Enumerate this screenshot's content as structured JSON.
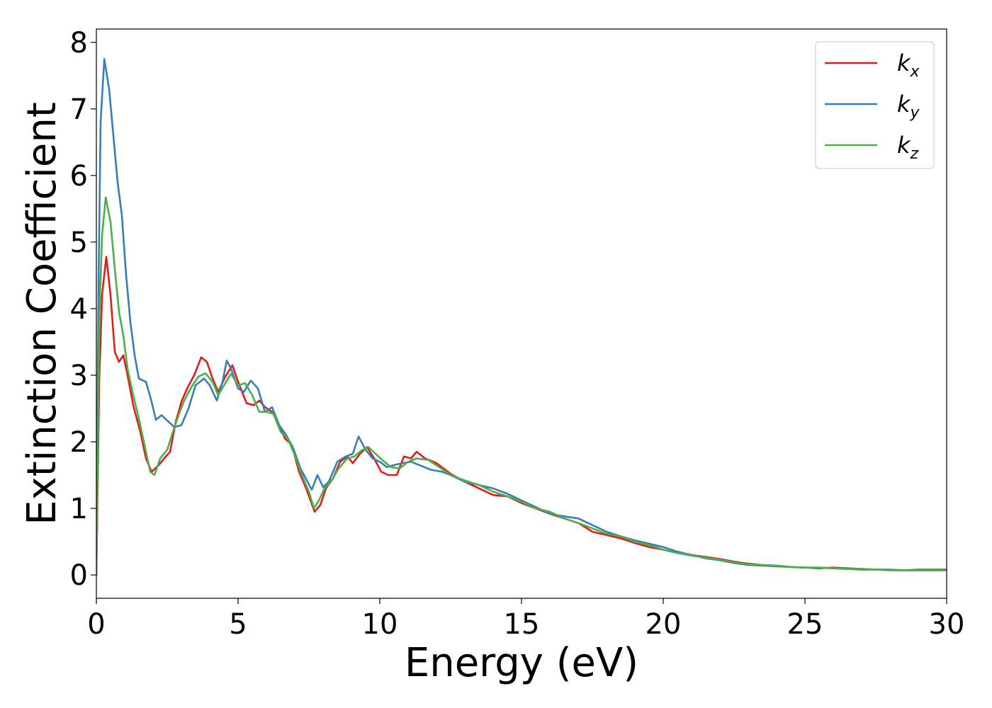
{
  "chart_data": {
    "type": "line",
    "title": "",
    "xlabel": "Energy (eV)",
    "ylabel": "Extinction Coefficient",
    "xlim": [
      0,
      30
    ],
    "ylim": [
      -0.35,
      8.2
    ],
    "xticks": [
      "0",
      "5",
      "10",
      "15",
      "20",
      "25",
      "30"
    ],
    "yticks": [
      "0",
      "1",
      "2",
      "3",
      "4",
      "5",
      "6",
      "7",
      "8"
    ],
    "grid": false,
    "legend_position": "top-right",
    "series": [
      {
        "name": "k",
        "subscript": "x",
        "color": "#e41a1c",
        "points": [
          [
            0,
            0
          ],
          [
            0.1,
            2.9
          ],
          [
            0.2,
            4.2
          ],
          [
            0.35,
            4.78
          ],
          [
            0.5,
            4.2
          ],
          [
            0.65,
            3.35
          ],
          [
            0.8,
            3.2
          ],
          [
            0.95,
            3.3
          ],
          [
            1.1,
            3.0
          ],
          [
            1.3,
            2.55
          ],
          [
            1.55,
            2.15
          ],
          [
            1.75,
            1.75
          ],
          [
            1.95,
            1.55
          ],
          [
            2.2,
            1.65
          ],
          [
            2.45,
            1.78
          ],
          [
            2.6,
            1.85
          ],
          [
            2.8,
            2.3
          ],
          [
            3.0,
            2.6
          ],
          [
            3.2,
            2.8
          ],
          [
            3.45,
            3.0
          ],
          [
            3.7,
            3.27
          ],
          [
            3.9,
            3.2
          ],
          [
            4.1,
            2.95
          ],
          [
            4.3,
            2.75
          ],
          [
            4.55,
            2.98
          ],
          [
            4.8,
            3.15
          ],
          [
            5.0,
            2.9
          ],
          [
            5.3,
            2.58
          ],
          [
            5.55,
            2.55
          ],
          [
            5.75,
            2.62
          ],
          [
            5.95,
            2.52
          ],
          [
            6.2,
            2.45
          ],
          [
            6.45,
            2.25
          ],
          [
            6.65,
            2.05
          ],
          [
            6.9,
            1.95
          ],
          [
            7.15,
            1.55
          ],
          [
            7.4,
            1.3
          ],
          [
            7.7,
            0.95
          ],
          [
            7.9,
            1.05
          ],
          [
            8.1,
            1.3
          ],
          [
            8.35,
            1.45
          ],
          [
            8.6,
            1.7
          ],
          [
            8.85,
            1.78
          ],
          [
            9.05,
            1.68
          ],
          [
            9.3,
            1.82
          ],
          [
            9.55,
            1.92
          ],
          [
            9.8,
            1.75
          ],
          [
            10.05,
            1.55
          ],
          [
            10.3,
            1.5
          ],
          [
            10.6,
            1.5
          ],
          [
            10.85,
            1.78
          ],
          [
            11.1,
            1.75
          ],
          [
            11.3,
            1.85
          ],
          [
            11.6,
            1.75
          ],
          [
            12.0,
            1.68
          ],
          [
            12.5,
            1.52
          ],
          [
            13.0,
            1.4
          ],
          [
            13.5,
            1.3
          ],
          [
            14.0,
            1.2
          ],
          [
            14.5,
            1.18
          ],
          [
            15.0,
            1.08
          ],
          [
            15.5,
            1.0
          ],
          [
            16.0,
            0.92
          ],
          [
            16.5,
            0.85
          ],
          [
            17.0,
            0.78
          ],
          [
            17.5,
            0.65
          ],
          [
            18.0,
            0.6
          ],
          [
            18.5,
            0.55
          ],
          [
            19.0,
            0.48
          ],
          [
            19.5,
            0.42
          ],
          [
            20.0,
            0.38
          ],
          [
            20.5,
            0.33
          ],
          [
            21.0,
            0.3
          ],
          [
            21.5,
            0.27
          ],
          [
            22.0,
            0.24
          ],
          [
            22.5,
            0.2
          ],
          [
            23.0,
            0.17
          ],
          [
            23.5,
            0.15
          ],
          [
            24.0,
            0.14
          ],
          [
            24.5,
            0.12
          ],
          [
            25.0,
            0.11
          ],
          [
            25.5,
            0.1
          ],
          [
            26.0,
            0.11
          ],
          [
            26.5,
            0.1
          ],
          [
            27.0,
            0.09
          ],
          [
            27.5,
            0.08
          ],
          [
            28.0,
            0.08
          ],
          [
            28.5,
            0.07
          ],
          [
            29.0,
            0.08
          ],
          [
            29.5,
            0.08
          ],
          [
            30.0,
            0.08
          ]
        ]
      },
      {
        "name": "k",
        "subscript": "y",
        "color": "#377eb8",
        "points": [
          [
            0,
            0
          ],
          [
            0.08,
            4.5
          ],
          [
            0.15,
            6.8
          ],
          [
            0.28,
            7.75
          ],
          [
            0.45,
            7.3
          ],
          [
            0.6,
            6.6
          ],
          [
            0.75,
            5.9
          ],
          [
            0.9,
            5.4
          ],
          [
            1.05,
            4.5
          ],
          [
            1.2,
            3.8
          ],
          [
            1.35,
            3.3
          ],
          [
            1.5,
            2.95
          ],
          [
            1.75,
            2.9
          ],
          [
            1.95,
            2.6
          ],
          [
            2.1,
            2.33
          ],
          [
            2.3,
            2.4
          ],
          [
            2.55,
            2.3
          ],
          [
            2.75,
            2.22
          ],
          [
            3.0,
            2.25
          ],
          [
            3.25,
            2.5
          ],
          [
            3.5,
            2.85
          ],
          [
            3.8,
            2.95
          ],
          [
            4.0,
            2.85
          ],
          [
            4.25,
            2.62
          ],
          [
            4.45,
            2.9
          ],
          [
            4.6,
            3.22
          ],
          [
            4.75,
            3.1
          ],
          [
            5.0,
            2.8
          ],
          [
            5.2,
            2.75
          ],
          [
            5.45,
            2.92
          ],
          [
            5.7,
            2.8
          ],
          [
            5.95,
            2.45
          ],
          [
            6.2,
            2.52
          ],
          [
            6.45,
            2.25
          ],
          [
            6.7,
            2.1
          ],
          [
            6.95,
            1.9
          ],
          [
            7.2,
            1.6
          ],
          [
            7.45,
            1.4
          ],
          [
            7.6,
            1.28
          ],
          [
            7.8,
            1.5
          ],
          [
            8.0,
            1.32
          ],
          [
            8.2,
            1.4
          ],
          [
            8.5,
            1.7
          ],
          [
            8.8,
            1.78
          ],
          [
            9.05,
            1.82
          ],
          [
            9.25,
            2.08
          ],
          [
            9.5,
            1.88
          ],
          [
            9.75,
            1.75
          ],
          [
            10.0,
            1.7
          ],
          [
            10.25,
            1.62
          ],
          [
            10.5,
            1.65
          ],
          [
            10.8,
            1.68
          ],
          [
            11.1,
            1.7
          ],
          [
            11.4,
            1.65
          ],
          [
            11.8,
            1.58
          ],
          [
            12.2,
            1.55
          ],
          [
            12.6,
            1.48
          ],
          [
            13.0,
            1.4
          ],
          [
            13.5,
            1.35
          ],
          [
            14.0,
            1.3
          ],
          [
            14.5,
            1.22
          ],
          [
            15.0,
            1.12
          ],
          [
            15.5,
            1.02
          ],
          [
            16.0,
            0.92
          ],
          [
            16.5,
            0.88
          ],
          [
            17.0,
            0.85
          ],
          [
            17.5,
            0.75
          ],
          [
            18.0,
            0.65
          ],
          [
            18.5,
            0.58
          ],
          [
            19.0,
            0.52
          ],
          [
            19.5,
            0.47
          ],
          [
            20.0,
            0.42
          ],
          [
            20.5,
            0.35
          ],
          [
            21.0,
            0.3
          ],
          [
            21.5,
            0.25
          ],
          [
            22.0,
            0.22
          ],
          [
            22.5,
            0.18
          ],
          [
            23.0,
            0.15
          ],
          [
            23.5,
            0.14
          ],
          [
            24.0,
            0.13
          ],
          [
            24.5,
            0.12
          ],
          [
            25.0,
            0.11
          ],
          [
            25.5,
            0.11
          ],
          [
            26.0,
            0.1
          ],
          [
            26.5,
            0.09
          ],
          [
            27.0,
            0.08
          ],
          [
            27.5,
            0.08
          ],
          [
            28.0,
            0.07
          ],
          [
            28.5,
            0.07
          ],
          [
            29.0,
            0.07
          ],
          [
            29.5,
            0.07
          ],
          [
            30.0,
            0.07
          ]
        ]
      },
      {
        "name": "k",
        "subscript": "z",
        "color": "#4daf4a",
        "points": [
          [
            0,
            0
          ],
          [
            0.1,
            3.8
          ],
          [
            0.2,
            5.1
          ],
          [
            0.33,
            5.67
          ],
          [
            0.5,
            5.3
          ],
          [
            0.65,
            4.6
          ],
          [
            0.8,
            3.95
          ],
          [
            0.95,
            3.6
          ],
          [
            1.1,
            3.1
          ],
          [
            1.3,
            2.7
          ],
          [
            1.5,
            2.35
          ],
          [
            1.7,
            1.95
          ],
          [
            1.9,
            1.55
          ],
          [
            2.05,
            1.5
          ],
          [
            2.25,
            1.75
          ],
          [
            2.5,
            1.88
          ],
          [
            2.7,
            2.15
          ],
          [
            2.9,
            2.4
          ],
          [
            3.1,
            2.62
          ],
          [
            3.35,
            2.82
          ],
          [
            3.6,
            2.98
          ],
          [
            3.85,
            3.03
          ],
          [
            4.1,
            2.9
          ],
          [
            4.3,
            2.7
          ],
          [
            4.55,
            2.88
          ],
          [
            4.75,
            3.02
          ],
          [
            5.0,
            2.85
          ],
          [
            5.25,
            2.88
          ],
          [
            5.5,
            2.7
          ],
          [
            5.75,
            2.45
          ],
          [
            6.0,
            2.45
          ],
          [
            6.25,
            2.42
          ],
          [
            6.5,
            2.15
          ],
          [
            6.75,
            2.05
          ],
          [
            7.0,
            1.8
          ],
          [
            7.25,
            1.5
          ],
          [
            7.5,
            1.25
          ],
          [
            7.68,
            1.0
          ],
          [
            7.85,
            1.12
          ],
          [
            8.05,
            1.3
          ],
          [
            8.3,
            1.42
          ],
          [
            8.55,
            1.6
          ],
          [
            8.85,
            1.75
          ],
          [
            9.1,
            1.78
          ],
          [
            9.35,
            1.87
          ],
          [
            9.6,
            1.92
          ],
          [
            9.85,
            1.82
          ],
          [
            10.1,
            1.72
          ],
          [
            10.4,
            1.62
          ],
          [
            10.7,
            1.6
          ],
          [
            11.0,
            1.7
          ],
          [
            11.3,
            1.75
          ],
          [
            11.7,
            1.73
          ],
          [
            12.1,
            1.62
          ],
          [
            12.5,
            1.5
          ],
          [
            13.0,
            1.42
          ],
          [
            13.5,
            1.35
          ],
          [
            14.0,
            1.25
          ],
          [
            14.5,
            1.18
          ],
          [
            15.0,
            1.1
          ],
          [
            15.5,
            1.0
          ],
          [
            16.0,
            0.95
          ],
          [
            16.5,
            0.85
          ],
          [
            17.0,
            0.78
          ],
          [
            17.5,
            0.7
          ],
          [
            18.0,
            0.62
          ],
          [
            18.5,
            0.58
          ],
          [
            19.0,
            0.5
          ],
          [
            19.5,
            0.45
          ],
          [
            20.0,
            0.38
          ],
          [
            20.5,
            0.33
          ],
          [
            21.0,
            0.29
          ],
          [
            21.5,
            0.26
          ],
          [
            22.0,
            0.23
          ],
          [
            22.5,
            0.19
          ],
          [
            23.0,
            0.16
          ],
          [
            23.5,
            0.15
          ],
          [
            24.0,
            0.14
          ],
          [
            24.5,
            0.12
          ],
          [
            25.0,
            0.11
          ],
          [
            25.5,
            0.11
          ],
          [
            26.0,
            0.1
          ],
          [
            26.5,
            0.09
          ],
          [
            27.0,
            0.09
          ],
          [
            27.5,
            0.08
          ],
          [
            28.0,
            0.08
          ],
          [
            28.5,
            0.07
          ],
          [
            29.0,
            0.07
          ],
          [
            29.5,
            0.07
          ],
          [
            30.0,
            0.07
          ]
        ]
      }
    ]
  }
}
